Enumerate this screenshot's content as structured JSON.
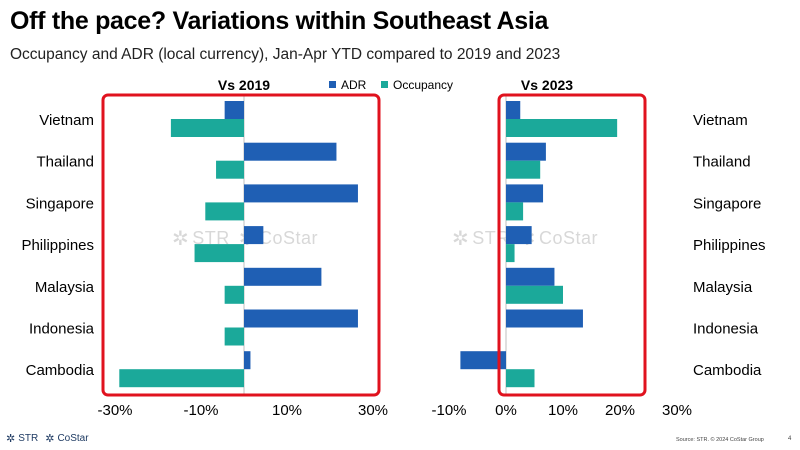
{
  "header": {
    "title": "Off the pace? Variations within Southeast Asia",
    "subtitle": "Occupancy and ADR (local currency), Jan-Apr YTD compared to 2019 and 2023"
  },
  "colors": {
    "adr": "#1f5fb4",
    "occupancy": "#1ba99a",
    "highlight": "#e0121e"
  },
  "footer": {
    "logo_str": "STR",
    "logo_costar": "CoStar",
    "source": "Source: STR. © 2024 CoStar Group",
    "page_number": "4"
  },
  "watermark": {
    "str": "STR",
    "costar": "CoStar"
  },
  "icons": {
    "str_logo": "str-star-icon",
    "costar_logo": "costar-star-icon"
  },
  "chart_data": [
    {
      "type": "bar",
      "orientation": "horizontal",
      "title": "Vs 2019",
      "categories": [
        "Vietnam",
        "Thailand",
        "Singapore",
        "Philippines",
        "Malaysia",
        "Indonesia",
        "Cambodia"
      ],
      "series": [
        {
          "name": "ADR",
          "values": [
            -4.5,
            21.5,
            26.5,
            4.5,
            18,
            26.5,
            1.5
          ]
        },
        {
          "name": "Occupancy",
          "values": [
            -17,
            -6.5,
            -9,
            -11.5,
            -4.5,
            -4.5,
            -29
          ]
        }
      ],
      "xlim": [
        -30,
        30
      ],
      "xticks": [
        -30,
        -10,
        10,
        30
      ],
      "xtick_labels": [
        "-30%",
        "-10%",
        "10%",
        "30%"
      ],
      "legend": [
        "ADR",
        "Occupancy"
      ],
      "legend_position": "top"
    },
    {
      "type": "bar",
      "orientation": "horizontal",
      "title": "Vs 2023",
      "categories": [
        "Vietnam",
        "Thailand",
        "Singapore",
        "Philippines",
        "Malaysia",
        "Indonesia",
        "Cambodia"
      ],
      "series": [
        {
          "name": "ADR",
          "values": [
            2.5,
            7,
            6.5,
            4.5,
            8.5,
            13.5,
            -8
          ]
        },
        {
          "name": "Occupancy",
          "values": [
            19.5,
            6,
            3,
            1.5,
            10,
            0,
            5
          ]
        }
      ],
      "xlim": [
        -10,
        30
      ],
      "xticks": [
        -10,
        0,
        10,
        20,
        30
      ],
      "xtick_labels": [
        "-10%",
        "0%",
        "10%",
        "20%",
        "30%"
      ]
    }
  ]
}
